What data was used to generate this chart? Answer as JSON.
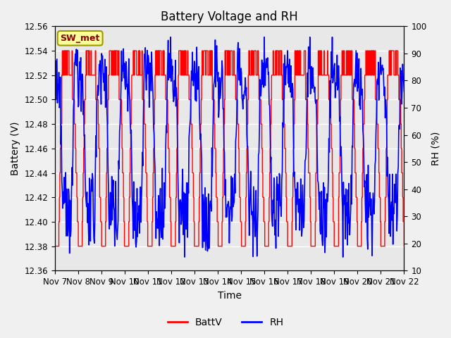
{
  "title": "Battery Voltage and RH",
  "xlabel": "Time",
  "ylabel_left": "Battery (V)",
  "ylabel_right": "RH (%)",
  "ylim_left": [
    12.36,
    12.56
  ],
  "ylim_right": [
    10,
    100
  ],
  "yticks_left": [
    12.36,
    12.38,
    12.4,
    12.42,
    12.44,
    12.46,
    12.48,
    12.5,
    12.52,
    12.54,
    12.56
  ],
  "yticks_right": [
    10,
    20,
    30,
    40,
    50,
    60,
    70,
    80,
    90,
    100
  ],
  "xtick_labels": [
    "Nov 7",
    "Nov 8",
    "Nov 9",
    "Nov 10",
    "Nov 11",
    "Nov 12",
    "Nov 13",
    "Nov 14",
    "Nov 15",
    "Nov 16",
    "Nov 17",
    "Nov 18",
    "Nov 19",
    "Nov 20",
    "Nov 21",
    "Nov 22"
  ],
  "station_label": "SW_met",
  "station_label_color": "#8B0000",
  "station_box_facecolor": "#FFFF99",
  "station_box_edgecolor": "#999900",
  "legend_labels": [
    "BattV",
    "RH"
  ],
  "battv_color": "red",
  "rh_color": "blue",
  "plot_bg_color": "#E8E8E8",
  "fig_bg_color": "#F0F0F0",
  "grid_color": "white",
  "title_fontsize": 12,
  "axis_fontsize": 10,
  "tick_fontsize": 8.5
}
